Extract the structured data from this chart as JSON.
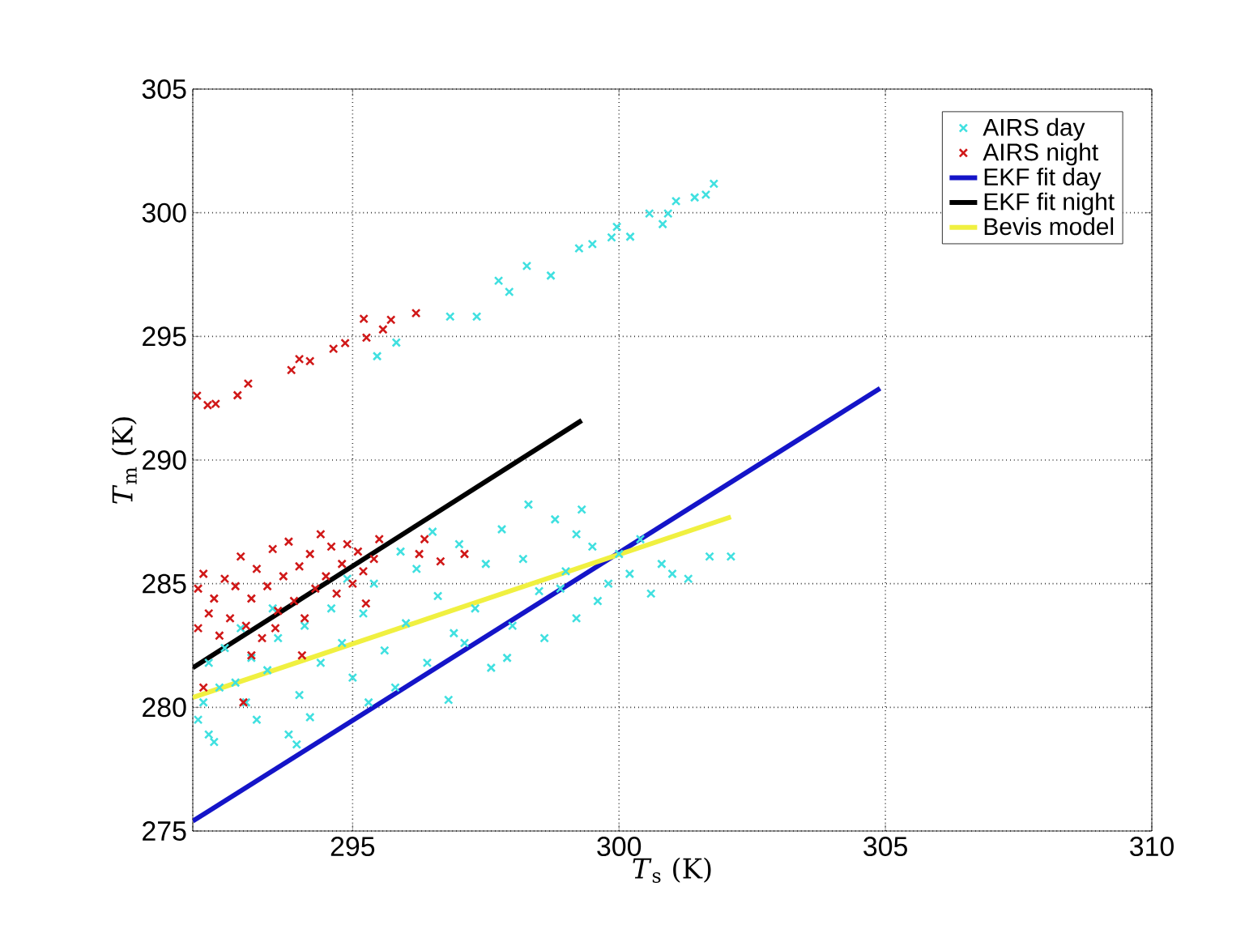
{
  "chart_data": {
    "type": "scatter",
    "xlabel": "*T*$_{s}$ (K)",
    "ylabel": "*T*$_{m}$ (K)",
    "xlim": [
      292,
      310
    ],
    "ylim": [
      275,
      305
    ],
    "xticks": [
      {
        "value": 292,
        "label": null
      },
      295,
      300,
      305,
      310
    ],
    "yticks": [
      275,
      280,
      285,
      290,
      295,
      300,
      305
    ],
    "grid": true,
    "legend": "top right",
    "series": [
      {
        "name": "AIRS day",
        "marker": "cross",
        "color": "#40e0e0",
        "x": [
          295.46,
          295.82,
          296.83,
          297.33,
          297.74,
          297.94,
          298.27,
          298.72,
          299.25,
          299.5,
          299.86,
          299.96,
          300.21,
          300.57,
          300.82,
          300.92,
          301.07,
          301.42,
          301.63,
          301.78,
          292.1,
          292.2,
          292.3,
          292.4,
          292.3,
          292.6,
          292.8,
          293.0,
          293.2,
          293.4,
          293.6,
          293.8,
          294.0,
          294.2,
          294.1,
          294.4,
          294.6,
          294.8,
          295.0,
          295.2,
          295.4,
          295.6,
          295.8,
          296.0,
          296.2,
          296.4,
          296.6,
          296.8,
          297.0,
          297.1,
          297.3,
          297.5,
          297.6,
          297.8,
          298.0,
          298.2,
          298.3,
          298.5,
          298.6,
          298.8,
          299.0,
          299.2,
          299.3,
          299.5,
          299.6,
          299.8,
          300.0,
          300.2,
          300.4,
          300.6,
          300.8,
          301.0,
          301.3,
          301.7,
          302.1,
          296.5,
          295.9,
          294.9,
          293.5,
          292.9,
          297.9,
          298.9,
          299.2,
          296.9,
          295.3,
          293.95,
          292.5,
          293.1
        ],
        "values": [
          294.2,
          294.75,
          295.8,
          295.8,
          297.25,
          296.8,
          297.85,
          297.46,
          298.56,
          298.73,
          299.0,
          299.43,
          299.03,
          299.97,
          299.54,
          299.97,
          300.47,
          300.62,
          300.73,
          301.17,
          279.5,
          280.2,
          278.9,
          278.6,
          281.8,
          282.4,
          281.0,
          280.2,
          279.5,
          281.5,
          282.8,
          278.9,
          280.5,
          279.6,
          283.3,
          281.8,
          284.0,
          282.6,
          281.2,
          283.8,
          285.0,
          282.3,
          280.8,
          283.4,
          285.6,
          281.8,
          284.5,
          280.3,
          286.6,
          282.6,
          284.0,
          285.8,
          281.6,
          287.2,
          283.3,
          286.0,
          288.2,
          284.7,
          282.8,
          287.6,
          285.5,
          283.6,
          288.0,
          286.5,
          284.3,
          285.0,
          286.2,
          285.4,
          286.8,
          284.6,
          285.8,
          285.4,
          285.2,
          286.1,
          286.1,
          287.1,
          286.3,
          285.2,
          284.0,
          283.2,
          282.0,
          284.8,
          287.0,
          283.0,
          280.2,
          278.5,
          280.8,
          282.0
        ]
      },
      {
        "name": "AIRS night",
        "marker": "cross",
        "color": "#d01818",
        "x": [
          292.08,
          292.28,
          292.43,
          292.84,
          293.04,
          293.85,
          294.0,
          294.2,
          294.64,
          294.86,
          295.21,
          295.26,
          295.57,
          295.72,
          296.19,
          292.2,
          292.95,
          293.1,
          294.05,
          295.25,
          296.25,
          296.35,
          296.65,
          297.1,
          293.55,
          292.1,
          292.1,
          292.2,
          292.3,
          292.4,
          292.5,
          292.6,
          292.7,
          292.8,
          292.9,
          293.0,
          293.1,
          293.2,
          293.3,
          293.4,
          293.5,
          293.6,
          293.7,
          293.8,
          293.9,
          294.0,
          294.1,
          294.2,
          294.3,
          294.4,
          294.5,
          294.6,
          294.7,
          294.8,
          294.9,
          295.0,
          295.1,
          295.2,
          295.4,
          295.5
        ],
        "values": [
          292.6,
          292.22,
          292.27,
          292.62,
          293.09,
          293.64,
          294.08,
          294.0,
          294.5,
          294.73,
          295.71,
          294.95,
          295.28,
          295.67,
          295.94,
          280.8,
          280.2,
          282.1,
          282.1,
          284.2,
          286.2,
          286.8,
          285.9,
          286.2,
          283.2,
          283.2,
          284.8,
          285.4,
          283.8,
          284.4,
          282.9,
          285.2,
          283.6,
          284.9,
          286.1,
          283.3,
          284.4,
          285.6,
          282.8,
          284.9,
          286.4,
          283.9,
          285.3,
          286.7,
          284.3,
          285.7,
          283.6,
          286.2,
          284.8,
          287.0,
          285.3,
          286.5,
          284.6,
          285.8,
          286.6,
          285.0,
          286.3,
          285.5,
          286.0,
          286.8
        ]
      },
      {
        "name": "EKF fit day",
        "type": "line",
        "marker": "none",
        "color": "#1414c8",
        "x": [
          292,
          304.9
        ],
        "values": [
          275.4,
          292.9
        ]
      },
      {
        "name": "EKF fit night",
        "type": "line",
        "marker": "none",
        "color": "#000000",
        "x": [
          292,
          299.3
        ],
        "values": [
          281.6,
          291.6
        ]
      },
      {
        "name": "Bevis model",
        "type": "line",
        "marker": "none",
        "color": "#f0f040",
        "x": [
          292,
          302.1
        ],
        "values": [
          280.4,
          287.7
        ]
      }
    ]
  }
}
